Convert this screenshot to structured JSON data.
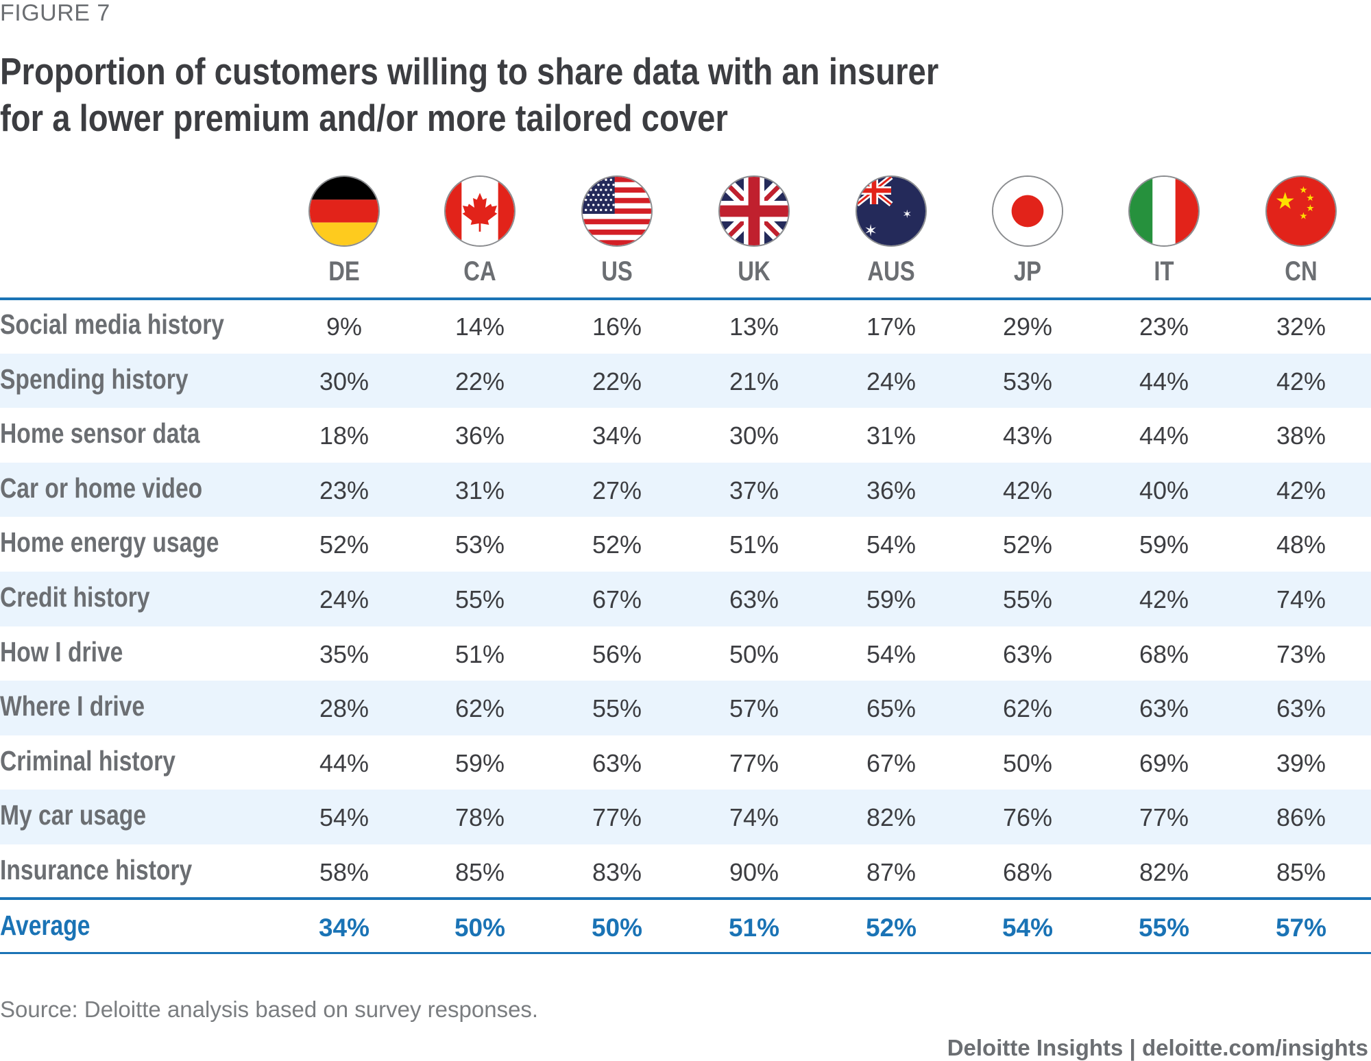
{
  "figure_label": "FIGURE 7",
  "title_line1": "Proportion of customers willing to share data with an insurer",
  "title_line2": "for a lower premium and/or more tailored cover",
  "source": "Source: Deloitte analysis based on survey responses.",
  "footer": "Deloitte Insights | deloitte.com/insights",
  "colors": {
    "accent": "#1a73b5",
    "stripe": "#eaf4fd",
    "text": "#3c3d41",
    "label": "#6b6e72"
  },
  "chart_data": {
    "type": "table",
    "title": "Proportion of customers willing to share data with an insurer for a lower premium and/or more tailored cover",
    "columns": [
      {
        "code": "DE",
        "flag": "germany-flag-icon"
      },
      {
        "code": "CA",
        "flag": "canada-flag-icon"
      },
      {
        "code": "US",
        "flag": "usa-flag-icon"
      },
      {
        "code": "UK",
        "flag": "uk-flag-icon"
      },
      {
        "code": "AUS",
        "flag": "australia-flag-icon"
      },
      {
        "code": "JP",
        "flag": "japan-flag-icon"
      },
      {
        "code": "IT",
        "flag": "italy-flag-icon"
      },
      {
        "code": "CN",
        "flag": "china-flag-icon"
      }
    ],
    "rows": [
      {
        "label": "Social media history",
        "values": [
          "9%",
          "14%",
          "16%",
          "13%",
          "17%",
          "29%",
          "23%",
          "32%"
        ]
      },
      {
        "label": "Spending history",
        "values": [
          "30%",
          "22%",
          "22%",
          "21%",
          "24%",
          "53%",
          "44%",
          "42%"
        ]
      },
      {
        "label": "Home sensor data",
        "values": [
          "18%",
          "36%",
          "34%",
          "30%",
          "31%",
          "43%",
          "44%",
          "38%"
        ]
      },
      {
        "label": "Car or home video",
        "values": [
          "23%",
          "31%",
          "27%",
          "37%",
          "36%",
          "42%",
          "40%",
          "42%"
        ]
      },
      {
        "label": "Home energy usage",
        "values": [
          "52%",
          "53%",
          "52%",
          "51%",
          "54%",
          "52%",
          "59%",
          "48%"
        ]
      },
      {
        "label": "Credit history",
        "values": [
          "24%",
          "55%",
          "67%",
          "63%",
          "59%",
          "55%",
          "42%",
          "74%"
        ]
      },
      {
        "label": "How I drive",
        "values": [
          "35%",
          "51%",
          "56%",
          "50%",
          "54%",
          "63%",
          "68%",
          "73%"
        ]
      },
      {
        "label": "Where I drive",
        "values": [
          "28%",
          "62%",
          "55%",
          "57%",
          "65%",
          "62%",
          "63%",
          "63%"
        ]
      },
      {
        "label": "Criminal history",
        "values": [
          "44%",
          "59%",
          "63%",
          "77%",
          "67%",
          "50%",
          "69%",
          "39%"
        ]
      },
      {
        "label": "My car usage",
        "values": [
          "54%",
          "78%",
          "77%",
          "74%",
          "82%",
          "76%",
          "77%",
          "86%"
        ]
      },
      {
        "label": "Insurance history",
        "values": [
          "58%",
          "85%",
          "83%",
          "90%",
          "87%",
          "68%",
          "82%",
          "85%"
        ]
      }
    ],
    "average": {
      "label": "Average",
      "values": [
        "34%",
        "50%",
        "50%",
        "51%",
        "52%",
        "54%",
        "55%",
        "57%"
      ]
    }
  }
}
